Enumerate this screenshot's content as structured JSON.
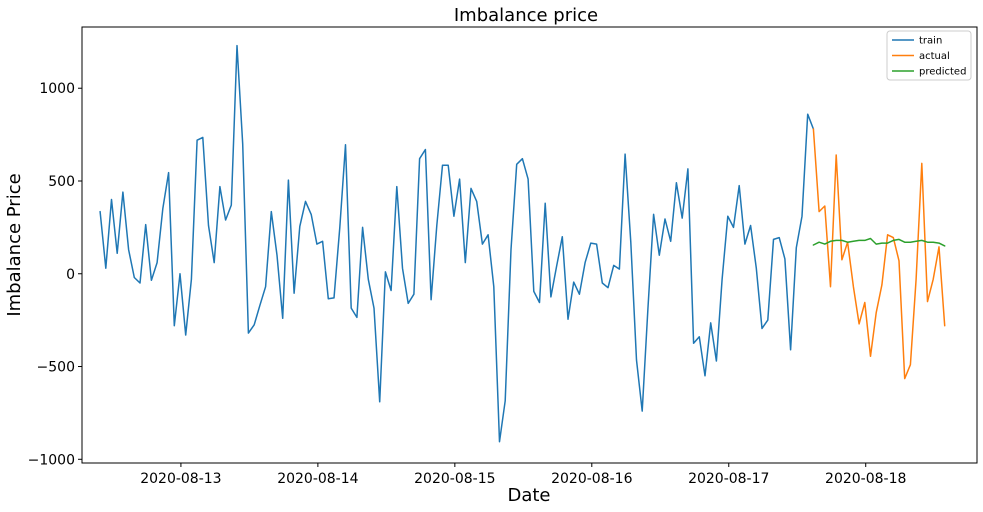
{
  "chart_data": {
    "type": "line",
    "title": "Imbalance price",
    "xlabel": "Date",
    "ylabel": "Imbalance Price",
    "x_ticks": [
      "2020-08-13",
      "2020-08-14",
      "2020-08-15",
      "2020-08-16",
      "2020-08-17",
      "2020-08-18"
    ],
    "y_ticks": [
      1000,
      500,
      0,
      -500,
      -1000
    ],
    "y_tick_labels": [
      "1000",
      "500",
      "0",
      "−500",
      "−1000"
    ],
    "xlim": [
      "2020-08-12 06:40",
      "2020-08-18 19:30"
    ],
    "ylim": [
      -1020,
      1330
    ],
    "grid": false,
    "legend_position": "top-right",
    "series": [
      {
        "name": "train",
        "color": "#1f77b4",
        "points": [
          [
            "2020-08-12 09:50",
            335
          ],
          [
            "2020-08-12 10:50",
            30
          ],
          [
            "2020-08-12 11:50",
            400
          ],
          [
            "2020-08-12 12:50",
            110
          ],
          [
            "2020-08-12 13:50",
            440
          ],
          [
            "2020-08-12 14:50",
            130
          ],
          [
            "2020-08-12 15:50",
            -20
          ],
          [
            "2020-08-12 16:50",
            -50
          ],
          [
            "2020-08-12 17:50",
            265
          ],
          [
            "2020-08-12 18:50",
            -35
          ],
          [
            "2020-08-12 19:50",
            60
          ],
          [
            "2020-08-12 20:50",
            350
          ],
          [
            "2020-08-12 21:50",
            545
          ],
          [
            "2020-08-12 22:50",
            -280
          ],
          [
            "2020-08-12 23:50",
            0
          ],
          [
            "2020-08-13 00:50",
            -330
          ],
          [
            "2020-08-13 01:50",
            -30
          ],
          [
            "2020-08-13 02:50",
            720
          ],
          [
            "2020-08-13 03:50",
            735
          ],
          [
            "2020-08-13 04:50",
            260
          ],
          [
            "2020-08-13 05:50",
            60
          ],
          [
            "2020-08-13 06:50",
            470
          ],
          [
            "2020-08-13 07:50",
            290
          ],
          [
            "2020-08-13 08:50",
            370
          ],
          [
            "2020-08-13 09:50",
            1230
          ],
          [
            "2020-08-13 10:50",
            700
          ],
          [
            "2020-08-13 11:50",
            -320
          ],
          [
            "2020-08-13 12:50",
            -275
          ],
          [
            "2020-08-13 13:50",
            -170
          ],
          [
            "2020-08-13 14:50",
            -70
          ],
          [
            "2020-08-13 15:50",
            335
          ],
          [
            "2020-08-13 16:50",
            100
          ],
          [
            "2020-08-13 17:50",
            -240
          ],
          [
            "2020-08-13 18:50",
            505
          ],
          [
            "2020-08-13 19:50",
            -105
          ],
          [
            "2020-08-13 20:50",
            255
          ],
          [
            "2020-08-13 21:50",
            390
          ],
          [
            "2020-08-13 22:50",
            320
          ],
          [
            "2020-08-13 23:50",
            160
          ],
          [
            "2020-08-14 00:50",
            175
          ],
          [
            "2020-08-14 01:50",
            -135
          ],
          [
            "2020-08-14 02:50",
            -130
          ],
          [
            "2020-08-14 03:50",
            250
          ],
          [
            "2020-08-14 04:50",
            695
          ],
          [
            "2020-08-14 05:50",
            -185
          ],
          [
            "2020-08-14 06:50",
            -235
          ],
          [
            "2020-08-14 07:50",
            250
          ],
          [
            "2020-08-14 08:50",
            -30
          ],
          [
            "2020-08-14 09:50",
            -185
          ],
          [
            "2020-08-14 10:50",
            -690
          ],
          [
            "2020-08-14 11:50",
            10
          ],
          [
            "2020-08-14 12:50",
            -90
          ],
          [
            "2020-08-14 13:50",
            470
          ],
          [
            "2020-08-14 14:50",
            30
          ],
          [
            "2020-08-14 15:50",
            -160
          ],
          [
            "2020-08-14 16:50",
            -110
          ],
          [
            "2020-08-14 17:50",
            620
          ],
          [
            "2020-08-14 18:50",
            670
          ],
          [
            "2020-08-14 19:50",
            -140
          ],
          [
            "2020-08-14 20:50",
            260
          ],
          [
            "2020-08-14 21:50",
            585
          ],
          [
            "2020-08-14 22:50",
            585
          ],
          [
            "2020-08-14 23:50",
            310
          ],
          [
            "2020-08-15 00:50",
            510
          ],
          [
            "2020-08-15 01:50",
            60
          ],
          [
            "2020-08-15 02:50",
            460
          ],
          [
            "2020-08-15 03:50",
            390
          ],
          [
            "2020-08-15 04:50",
            160
          ],
          [
            "2020-08-15 05:50",
            210
          ],
          [
            "2020-08-15 06:50",
            -70
          ],
          [
            "2020-08-15 07:50",
            -905
          ],
          [
            "2020-08-15 08:50",
            -685
          ],
          [
            "2020-08-15 09:50",
            130
          ],
          [
            "2020-08-15 10:50",
            590
          ],
          [
            "2020-08-15 11:50",
            620
          ],
          [
            "2020-08-15 12:50",
            510
          ],
          [
            "2020-08-15 13:50",
            -95
          ],
          [
            "2020-08-15 14:50",
            -155
          ],
          [
            "2020-08-15 15:50",
            380
          ],
          [
            "2020-08-15 16:50",
            -125
          ],
          [
            "2020-08-15 17:50",
            40
          ],
          [
            "2020-08-15 18:50",
            200
          ],
          [
            "2020-08-15 19:50",
            -245
          ],
          [
            "2020-08-15 20:50",
            -45
          ],
          [
            "2020-08-15 21:50",
            -110
          ],
          [
            "2020-08-15 22:50",
            60
          ],
          [
            "2020-08-15 23:50",
            165
          ],
          [
            "2020-08-16 00:50",
            160
          ],
          [
            "2020-08-16 01:50",
            -50
          ],
          [
            "2020-08-16 02:50",
            -75
          ],
          [
            "2020-08-16 03:50",
            45
          ],
          [
            "2020-08-16 04:50",
            25
          ],
          [
            "2020-08-16 05:50",
            645
          ],
          [
            "2020-08-16 06:50",
            170
          ],
          [
            "2020-08-16 07:50",
            -465
          ],
          [
            "2020-08-16 08:50",
            -740
          ],
          [
            "2020-08-16 09:50",
            -190
          ],
          [
            "2020-08-16 10:50",
            320
          ],
          [
            "2020-08-16 11:50",
            100
          ],
          [
            "2020-08-16 12:50",
            295
          ],
          [
            "2020-08-16 13:50",
            175
          ],
          [
            "2020-08-16 14:50",
            490
          ],
          [
            "2020-08-16 15:50",
            300
          ],
          [
            "2020-08-16 16:50",
            565
          ],
          [
            "2020-08-16 17:50",
            -375
          ],
          [
            "2020-08-16 18:50",
            -340
          ],
          [
            "2020-08-16 19:50",
            -550
          ],
          [
            "2020-08-16 20:50",
            -265
          ],
          [
            "2020-08-16 21:50",
            -470
          ],
          [
            "2020-08-16 22:50",
            -30
          ],
          [
            "2020-08-16 23:50",
            310
          ],
          [
            "2020-08-17 00:50",
            250
          ],
          [
            "2020-08-17 01:50",
            475
          ],
          [
            "2020-08-17 02:50",
            160
          ],
          [
            "2020-08-17 03:50",
            260
          ],
          [
            "2020-08-17 04:50",
            30
          ],
          [
            "2020-08-17 05:50",
            -295
          ],
          [
            "2020-08-17 06:50",
            -250
          ],
          [
            "2020-08-17 07:50",
            185
          ],
          [
            "2020-08-17 08:50",
            195
          ],
          [
            "2020-08-17 09:50",
            80
          ],
          [
            "2020-08-17 10:50",
            -410
          ],
          [
            "2020-08-17 11:50",
            140
          ],
          [
            "2020-08-17 12:50",
            310
          ],
          [
            "2020-08-17 13:50",
            860
          ],
          [
            "2020-08-17 14:50",
            780
          ]
        ]
      },
      {
        "name": "actual",
        "color": "#ff7f0e",
        "points": [
          [
            "2020-08-17 14:50",
            780
          ],
          [
            "2020-08-17 15:50",
            335
          ],
          [
            "2020-08-17 16:50",
            365
          ],
          [
            "2020-08-17 17:50",
            -70
          ],
          [
            "2020-08-17 18:50",
            640
          ],
          [
            "2020-08-17 19:50",
            75
          ],
          [
            "2020-08-17 20:50",
            170
          ],
          [
            "2020-08-17 21:50",
            -70
          ],
          [
            "2020-08-17 22:50",
            -270
          ],
          [
            "2020-08-17 23:50",
            -155
          ],
          [
            "2020-08-18 00:50",
            -445
          ],
          [
            "2020-08-18 01:50",
            -210
          ],
          [
            "2020-08-18 02:50",
            -60
          ],
          [
            "2020-08-18 03:50",
            210
          ],
          [
            "2020-08-18 04:50",
            195
          ],
          [
            "2020-08-18 05:50",
            70
          ],
          [
            "2020-08-18 06:50",
            -565
          ],
          [
            "2020-08-18 07:50",
            -490
          ],
          [
            "2020-08-18 08:50",
            -30
          ],
          [
            "2020-08-18 09:50",
            595
          ],
          [
            "2020-08-18 10:50",
            -150
          ],
          [
            "2020-08-18 11:50",
            -30
          ],
          [
            "2020-08-18 12:50",
            145
          ],
          [
            "2020-08-18 13:50",
            -280
          ]
        ]
      },
      {
        "name": "predicted",
        "color": "#2ca02c",
        "points": [
          [
            "2020-08-17 14:50",
            155
          ],
          [
            "2020-08-17 15:50",
            170
          ],
          [
            "2020-08-17 16:50",
            160
          ],
          [
            "2020-08-17 17:50",
            175
          ],
          [
            "2020-08-17 18:50",
            180
          ],
          [
            "2020-08-17 19:50",
            180
          ],
          [
            "2020-08-17 20:50",
            170
          ],
          [
            "2020-08-17 21:50",
            175
          ],
          [
            "2020-08-17 22:50",
            180
          ],
          [
            "2020-08-17 23:50",
            180
          ],
          [
            "2020-08-18 00:50",
            190
          ],
          [
            "2020-08-18 01:50",
            160
          ],
          [
            "2020-08-18 02:50",
            165
          ],
          [
            "2020-08-18 03:50",
            165
          ],
          [
            "2020-08-18 04:50",
            180
          ],
          [
            "2020-08-18 05:50",
            185
          ],
          [
            "2020-08-18 06:50",
            170
          ],
          [
            "2020-08-18 07:50",
            170
          ],
          [
            "2020-08-18 08:50",
            175
          ],
          [
            "2020-08-18 09:50",
            180
          ],
          [
            "2020-08-18 10:50",
            170
          ],
          [
            "2020-08-18 11:50",
            170
          ],
          [
            "2020-08-18 12:50",
            165
          ],
          [
            "2020-08-18 13:50",
            150
          ]
        ]
      }
    ]
  }
}
